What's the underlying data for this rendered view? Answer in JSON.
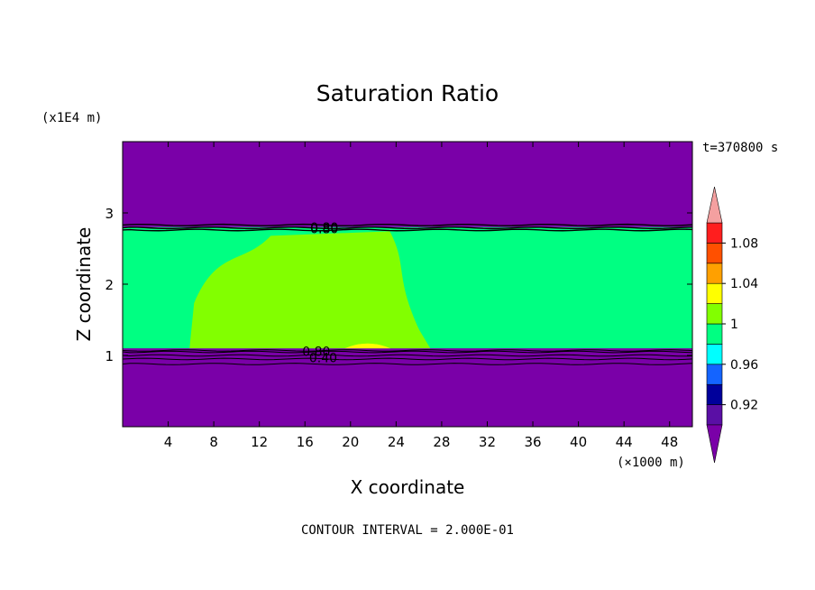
{
  "chart_data": {
    "type": "heatmap",
    "title": "Saturation Ratio",
    "time_label": "t=370800 s",
    "xlabel": "X coordinate",
    "ylabel": "Z coordinate",
    "x_unit_label": "(×1000 m)",
    "y_unit_label": "(x1E4 m)",
    "footer": "CONTOUR INTERVAL = 2.000E-01",
    "x_axis": {
      "range": [
        0,
        50
      ],
      "ticks": [
        4,
        8,
        12,
        16,
        20,
        24,
        28,
        32,
        36,
        40,
        44,
        48
      ],
      "tick_labels": [
        "4",
        "8",
        "12",
        "16",
        "20",
        "24",
        "28",
        "32",
        "36",
        "40",
        "44",
        "48"
      ]
    },
    "y_axis": {
      "range": [
        0,
        4
      ],
      "ticks": [
        1,
        2,
        3
      ],
      "tick_labels": [
        "1",
        "2",
        "3"
      ]
    },
    "colorbar": {
      "levels": [
        0.9,
        0.92,
        0.94,
        0.96,
        0.98,
        1.0,
        1.02,
        1.04,
        1.06,
        1.08,
        1.1
      ],
      "tick_labels": [
        "0.92",
        "0.96",
        "1",
        "1.04",
        "1.08"
      ],
      "tick_values": [
        0.92,
        0.96,
        1.0,
        1.04,
        1.08
      ],
      "colors": [
        "#5a0fa5",
        "#00009b",
        "#1464ff",
        "#00ffff",
        "#00ff82",
        "#82ff00",
        "#ffff00",
        "#ffa000",
        "#ff5000",
        "#ff1e1e"
      ],
      "under_color": "#7a00a8",
      "over_color": "#f4a0a0"
    },
    "regions": [
      {
        "name": "upper dry layer",
        "value_class": "below 0.9",
        "z_range": [
          2.8,
          4.0
        ],
        "x_range": [
          0,
          50
        ]
      },
      {
        "name": "cloud layer near saturation",
        "value_class": "0.98-1.0",
        "z_range": [
          1.1,
          2.8
        ],
        "x_range": [
          0,
          50
        ]
      },
      {
        "name": "supersaturated cloud region",
        "value_class": "1.0-1.02",
        "z_range": [
          1.1,
          2.78
        ],
        "x_range": [
          3.5,
          27
        ]
      },
      {
        "name": "small supersaturated patch",
        "value_class": "1.02-1.04",
        "z_range": [
          1.1,
          1.16
        ],
        "x_range": [
          19.5,
          23.5
        ]
      },
      {
        "name": "lower dry layer",
        "value_class": "below 0.9",
        "z_range": [
          0,
          1.05
        ],
        "x_range": [
          0,
          50
        ]
      }
    ],
    "contour_labels": [
      {
        "text": "0.80",
        "x": 17.7,
        "z": 2.8
      },
      {
        "text": "0.80",
        "x": 17.7,
        "z": 2.78
      },
      {
        "text": "0.80",
        "x": 17.0,
        "z": 1.06
      },
      {
        "text": "0.40",
        "x": 17.6,
        "z": 0.97
      }
    ],
    "contour_lines_z": [
      2.83,
      2.79,
      2.76,
      1.07,
      1.05,
      1.0,
      0.95,
      0.88
    ]
  }
}
